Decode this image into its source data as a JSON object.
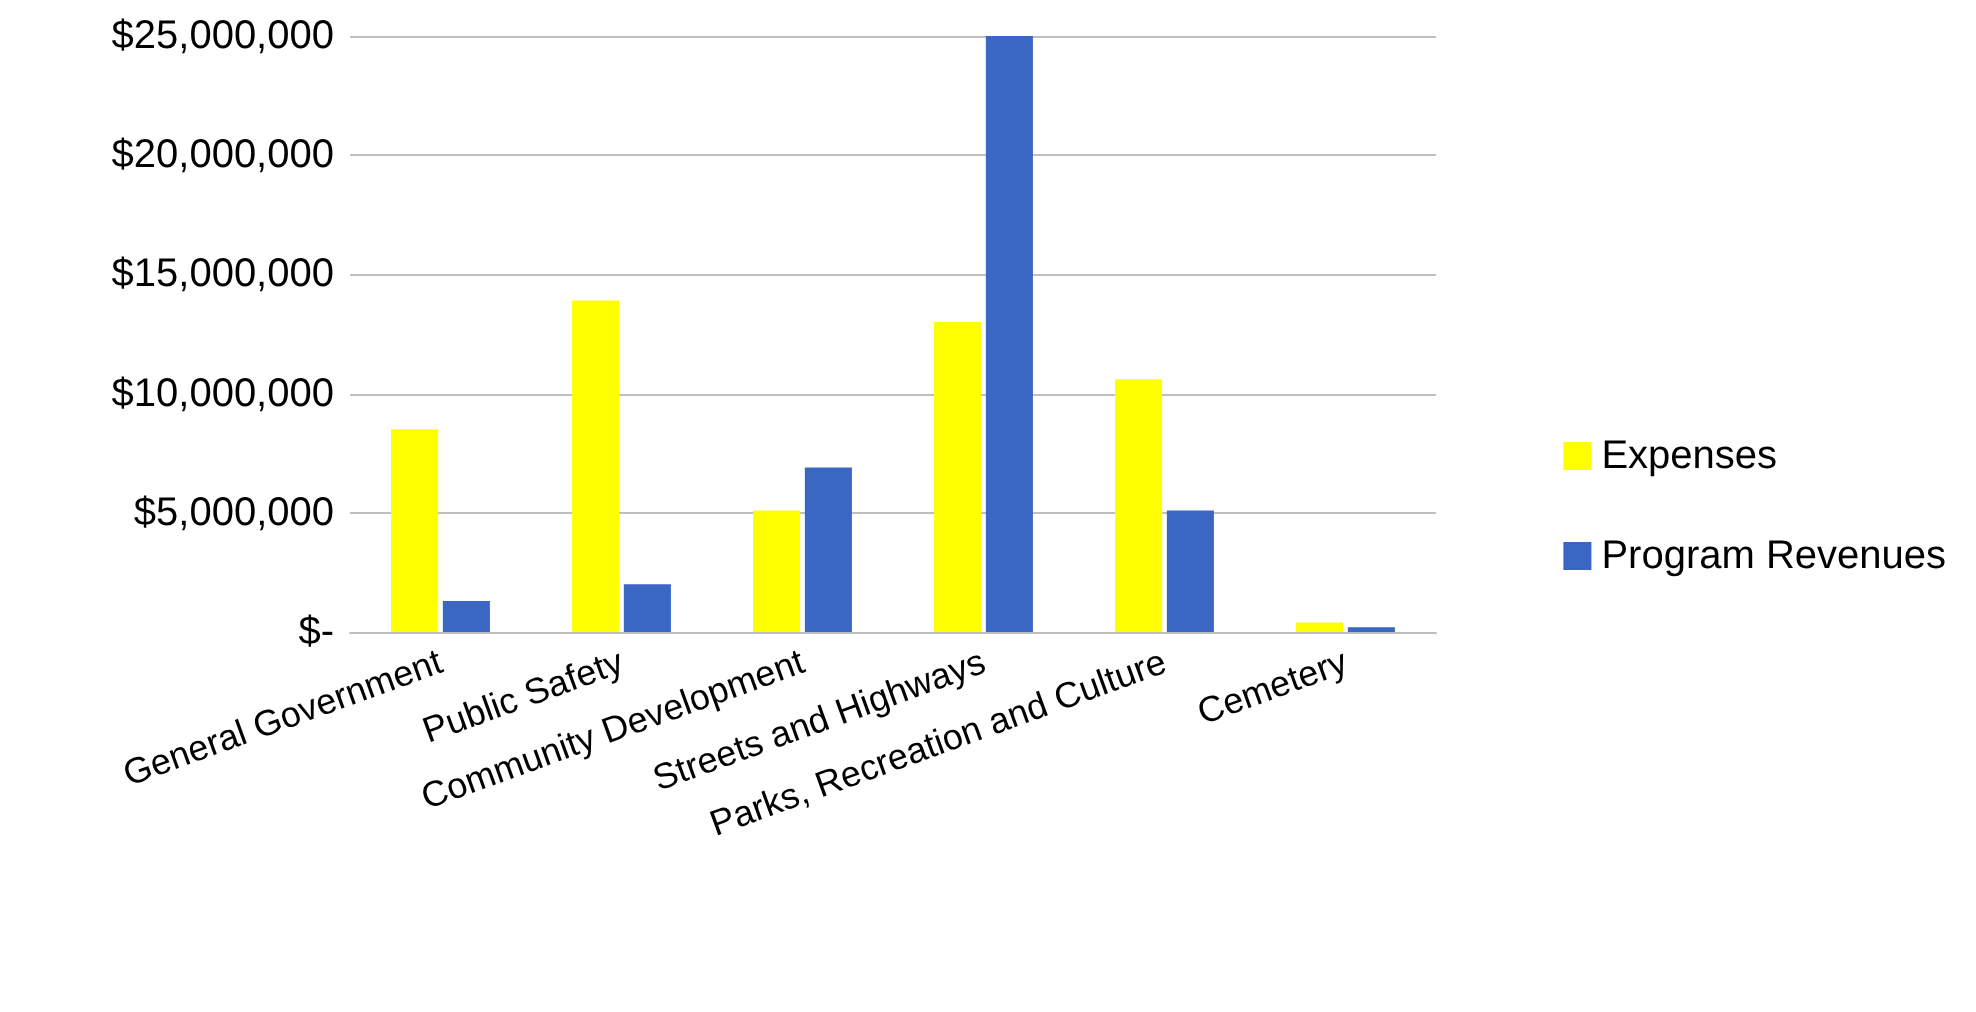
{
  "chart_data": {
    "type": "bar",
    "categories": [
      "General Government",
      "Public Safety",
      "Community Development",
      "Streets and Highways",
      "Parks, Recreation and Culture",
      "Cemetery"
    ],
    "series": [
      {
        "name": "Expenses",
        "color": "#ffff00",
        "values": [
          8500000,
          13900000,
          5100000,
          13000000,
          10600000,
          400000
        ]
      },
      {
        "name": "Program Revenues",
        "color": "#3a66c4",
        "values": [
          1300000,
          2000000,
          6900000,
          25000000,
          5100000,
          200000
        ]
      }
    ],
    "ylim": [
      0,
      25000000
    ],
    "yticks": [
      {
        "value": 0,
        "label": "$-"
      },
      {
        "value": 5000000,
        "label": "$5,000,000"
      },
      {
        "value": 10000000,
        "label": "$10,000,000"
      },
      {
        "value": 15000000,
        "label": "$15,000,000"
      },
      {
        "value": 20000000,
        "label": "$20,000,000"
      },
      {
        "value": 25000000,
        "label": "$25,000,000"
      }
    ],
    "grid": "y",
    "legend": "right"
  }
}
